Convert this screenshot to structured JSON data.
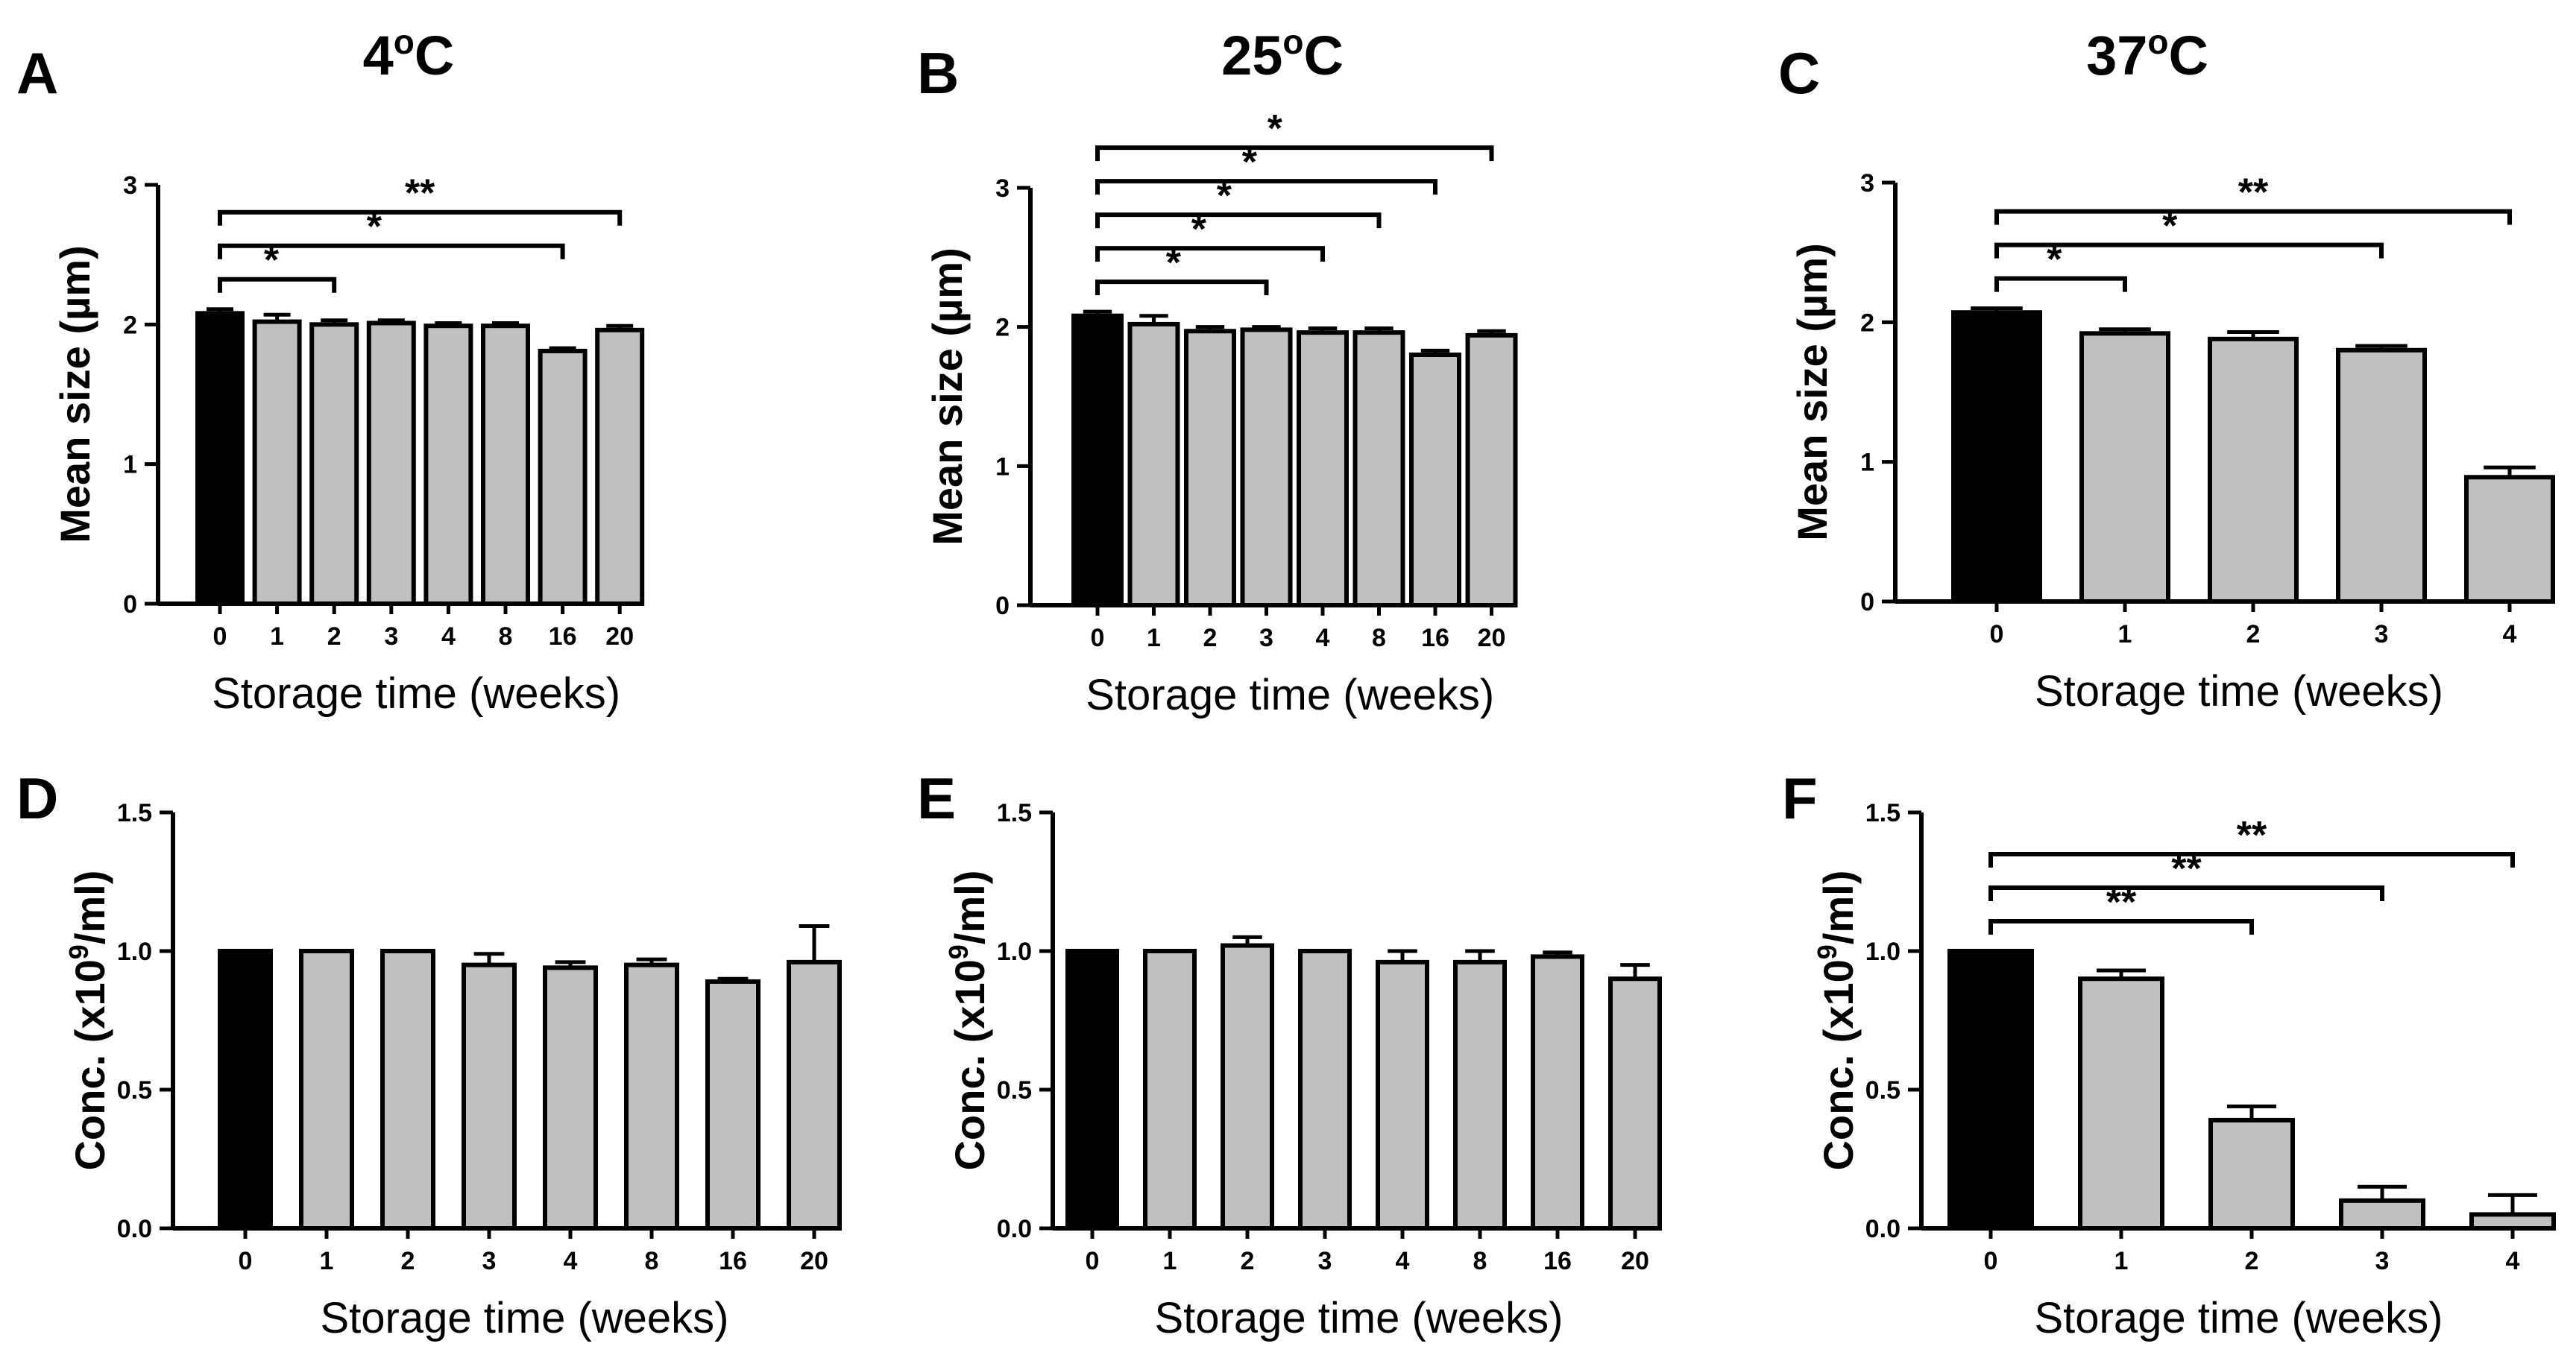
{
  "colors": {
    "first_bar": "#000000",
    "other_bars": "#c0c0c0",
    "stroke": "#000000"
  },
  "temperature_superscript": "o",
  "chart_data": [
    {
      "panel": "A",
      "type": "bar",
      "title": "4",
      "title_unit": "C",
      "ylabel": "Mean size (µm)",
      "xlabel": "Storage time (weeks)",
      "categories": [
        "0",
        "1",
        "2",
        "3",
        "4",
        "8",
        "16",
        "20"
      ],
      "values": [
        2.08,
        2.02,
        2.0,
        2.01,
        1.99,
        1.99,
        1.81,
        1.96
      ],
      "errors": [
        0.03,
        0.05,
        0.03,
        0.02,
        0.02,
        0.02,
        0.02,
        0.03
      ],
      "ylim": [
        0,
        3
      ],
      "yticks": [
        "0",
        "1",
        "2",
        "3"
      ],
      "significance": [
        {
          "from": 0,
          "to": 2,
          "label": "*"
        },
        {
          "from": 0,
          "to": 6,
          "label": "*"
        },
        {
          "from": 0,
          "to": 7,
          "label": "**"
        }
      ]
    },
    {
      "panel": "B",
      "type": "bar",
      "title": "25",
      "title_unit": "C",
      "ylabel": "Mean size (µm)",
      "xlabel": "Storage time (weeks)",
      "categories": [
        "0",
        "1",
        "2",
        "3",
        "4",
        "8",
        "16",
        "20"
      ],
      "values": [
        2.08,
        2.02,
        1.97,
        1.98,
        1.96,
        1.96,
        1.8,
        1.94
      ],
      "errors": [
        0.03,
        0.06,
        0.03,
        0.02,
        0.03,
        0.03,
        0.03,
        0.03
      ],
      "ylim": [
        0,
        3
      ],
      "yticks": [
        "0",
        "1",
        "2",
        "3"
      ],
      "significance": [
        {
          "from": 0,
          "to": 3,
          "label": "*"
        },
        {
          "from": 0,
          "to": 4,
          "label": "*"
        },
        {
          "from": 0,
          "to": 5,
          "label": "*"
        },
        {
          "from": 0,
          "to": 6,
          "label": "*"
        },
        {
          "from": 0,
          "to": 7,
          "label": "*"
        }
      ]
    },
    {
      "panel": "C",
      "type": "bar",
      "title": "37",
      "title_unit": "C",
      "ylabel": "Mean size (µm)",
      "xlabel": "Storage time (weeks)",
      "categories": [
        "0",
        "1",
        "2",
        "3",
        "4"
      ],
      "values": [
        2.07,
        1.92,
        1.88,
        1.8,
        0.89
      ],
      "errors": [
        0.03,
        0.03,
        0.05,
        0.03,
        0.07
      ],
      "ylim": [
        0,
        3
      ],
      "yticks": [
        "0",
        "1",
        "2",
        "3"
      ],
      "significance": [
        {
          "from": 0,
          "to": 1,
          "label": "*"
        },
        {
          "from": 0,
          "to": 3,
          "label": "*"
        },
        {
          "from": 0,
          "to": 4,
          "label": "**"
        }
      ]
    },
    {
      "panel": "D",
      "type": "bar",
      "ylabel": "Conc. (x10",
      "ylabel_sup": "9",
      "ylabel_end": "/ml)",
      "xlabel": "Storage time (weeks)",
      "categories": [
        "0",
        "1",
        "2",
        "3",
        "4",
        "8",
        "16",
        "20"
      ],
      "values": [
        1.0,
        1.0,
        1.0,
        0.95,
        0.94,
        0.95,
        0.89,
        0.96
      ],
      "errors": [
        0,
        0,
        0,
        0.04,
        0.02,
        0.02,
        0.01,
        0.13
      ],
      "ylim": [
        0,
        1.5
      ],
      "yticks": [
        "0.0",
        "0.5",
        "1.0",
        "1.5"
      ],
      "significance": []
    },
    {
      "panel": "E",
      "type": "bar",
      "ylabel": "Conc. (x10",
      "ylabel_sup": "9",
      "ylabel_end": "/ml)",
      "xlabel": "Storage time (weeks)",
      "categories": [
        "0",
        "1",
        "2",
        "3",
        "4",
        "8",
        "16",
        "20"
      ],
      "values": [
        1.0,
        1.0,
        1.02,
        1.0,
        0.96,
        0.96,
        0.98,
        0.9
      ],
      "errors": [
        0,
        0,
        0.03,
        0,
        0.04,
        0.04,
        0.015,
        0.05
      ],
      "ylim": [
        0,
        1.5
      ],
      "yticks": [
        "0.0",
        "0.5",
        "1.0",
        "1.5"
      ],
      "significance": []
    },
    {
      "panel": "F",
      "type": "bar",
      "ylabel": "Conc. (x10",
      "ylabel_sup": "9",
      "ylabel_end": "/ml)",
      "xlabel": "Storage time (weeks)",
      "categories": [
        "0",
        "1",
        "2",
        "3",
        "4"
      ],
      "values": [
        1.0,
        0.9,
        0.39,
        0.1,
        0.05
      ],
      "errors": [
        0,
        0.03,
        0.05,
        0.05,
        0.07
      ],
      "ylim": [
        0,
        1.5
      ],
      "yticks": [
        "0.0",
        "0.5",
        "1.0",
        "1.5"
      ],
      "significance": [
        {
          "from": 0,
          "to": 2,
          "label": "**"
        },
        {
          "from": 0,
          "to": 3,
          "label": "**"
        },
        {
          "from": 0,
          "to": 4,
          "label": "**"
        }
      ]
    }
  ]
}
